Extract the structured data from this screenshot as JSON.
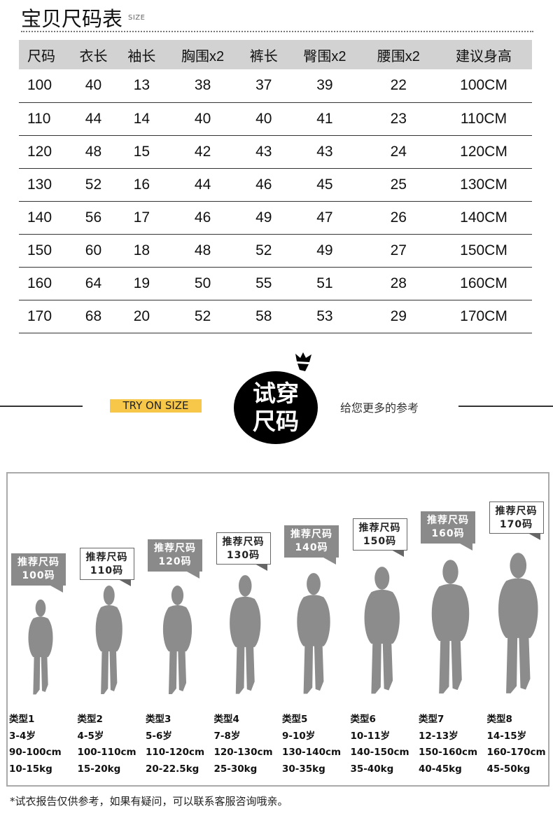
{
  "header": {
    "title": "宝贝尺码表",
    "title_en": "SIZE"
  },
  "size_table": {
    "columns": [
      "尺码",
      "衣长",
      "袖长",
      "胸围x2",
      "裤长",
      "臀围x2",
      "腰围x2",
      "建议身高"
    ],
    "rows": [
      [
        "100",
        "40",
        "13",
        "38",
        "37",
        "39",
        "22",
        "100CM"
      ],
      [
        "110",
        "44",
        "14",
        "40",
        "40",
        "41",
        "23",
        "110CM"
      ],
      [
        "120",
        "48",
        "15",
        "42",
        "43",
        "43",
        "24",
        "120CM"
      ],
      [
        "130",
        "52",
        "16",
        "44",
        "46",
        "45",
        "25",
        "130CM"
      ],
      [
        "140",
        "56",
        "17",
        "46",
        "49",
        "47",
        "26",
        "140CM"
      ],
      [
        "150",
        "60",
        "18",
        "48",
        "52",
        "49",
        "27",
        "150CM"
      ],
      [
        "160",
        "64",
        "19",
        "50",
        "55",
        "51",
        "28",
        "160CM"
      ],
      [
        "170",
        "68",
        "20",
        "52",
        "58",
        "53",
        "29",
        "170CM"
      ]
    ]
  },
  "tryon": {
    "label_en": "TRY ON SIZE",
    "badge_line1": "试穿",
    "badge_line2": "尺码",
    "subtitle": "给您更多的参考",
    "accent": "#f7c74a"
  },
  "types": [
    {
      "bubble_title": "推荐尺码",
      "bubble_size": "100码",
      "style": "gray",
      "name": "类型1",
      "age": "3-4岁",
      "height": "90-100cm",
      "weight": "10-15kg"
    },
    {
      "bubble_title": "推荐尺码",
      "bubble_size": "110码",
      "style": "white",
      "name": "类型2",
      "age": "4-5岁",
      "height": "100-110cm",
      "weight": "15-20kg"
    },
    {
      "bubble_title": "推荐尺码",
      "bubble_size": "120码",
      "style": "gray",
      "name": "类型3",
      "age": "5-6岁",
      "height": "110-120cm",
      "weight": "20-22.5kg"
    },
    {
      "bubble_title": "推荐尺码",
      "bubble_size": "130码",
      "style": "white",
      "name": "类型4",
      "age": "7-8岁",
      "height": "120-130cm",
      "weight": "25-30kg"
    },
    {
      "bubble_title": "推荐尺码",
      "bubble_size": "140码",
      "style": "gray",
      "name": "类型5",
      "age": "9-10岁",
      "height": "130-140cm",
      "weight": "30-35kg"
    },
    {
      "bubble_title": "推荐尺码",
      "bubble_size": "150码",
      "style": "white",
      "name": "类型6",
      "age": "10-11岁",
      "height": "140-150cm",
      "weight": "35-40kg"
    },
    {
      "bubble_title": "推荐尺码",
      "bubble_size": "160码",
      "style": "gray",
      "name": "类型7",
      "age": "12-13岁",
      "height": "150-160cm",
      "weight": "40-45kg"
    },
    {
      "bubble_title": "推荐尺码",
      "bubble_size": "170码",
      "style": "white",
      "name": "类型8",
      "age": "14-15岁",
      "height": "160-170cm",
      "weight": "45-50kg"
    }
  ],
  "footer_note": "*试衣报告仅供参考，如果有疑问，可以联系客服咨询哦亲。"
}
